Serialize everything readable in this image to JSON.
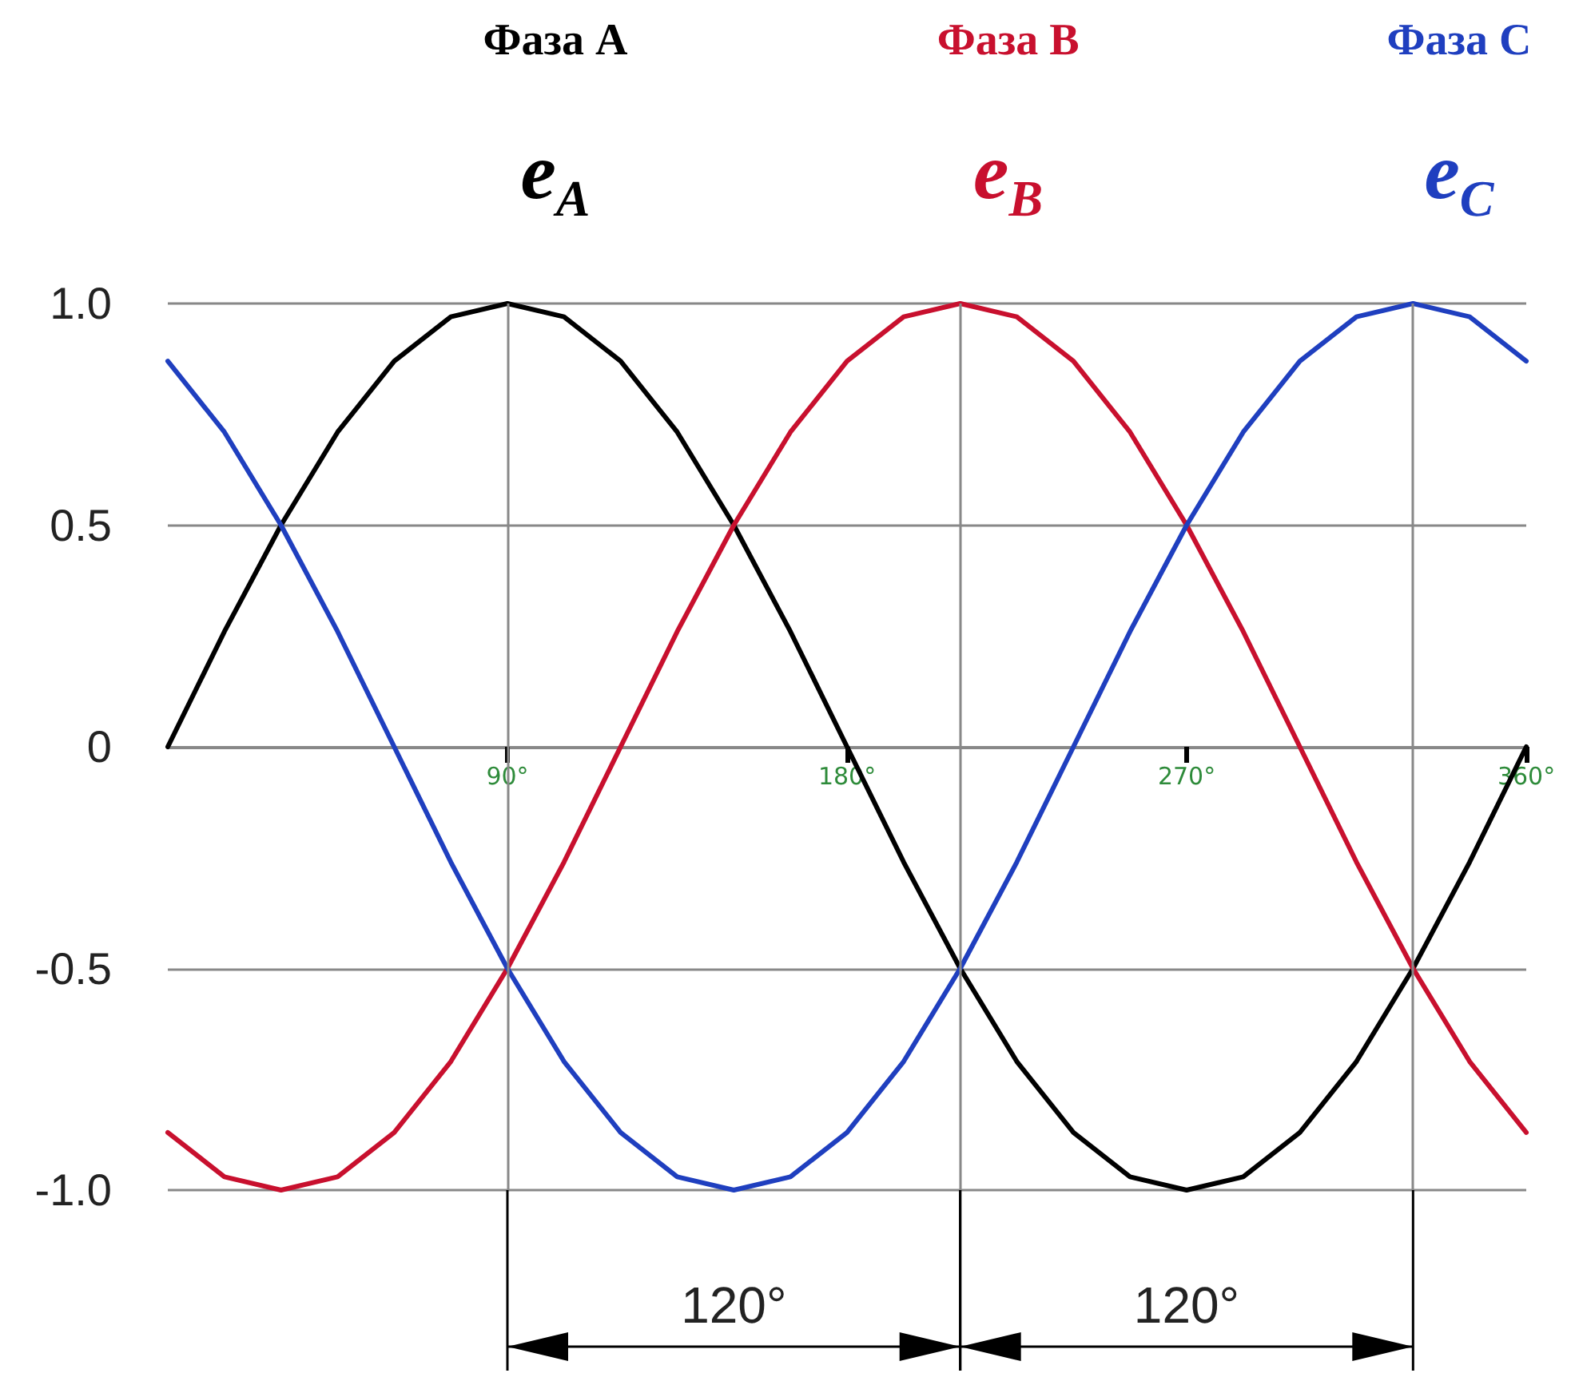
{
  "chart_data": {
    "type": "line",
    "x": [
      0,
      15,
      30,
      45,
      60,
      75,
      90,
      105,
      120,
      135,
      150,
      165,
      180,
      195,
      210,
      225,
      240,
      255,
      270,
      285,
      300,
      315,
      330,
      345,
      360
    ],
    "series": [
      {
        "name": "Фаза А",
        "color": "#000000",
        "values": [
          0,
          0.26,
          0.5,
          0.71,
          0.87,
          0.97,
          1,
          0.97,
          0.87,
          0.71,
          0.5,
          0.26,
          0,
          -0.26,
          -0.5,
          -0.71,
          -0.87,
          -0.97,
          -1,
          -0.97,
          -0.87,
          -0.71,
          -0.5,
          -0.26,
          0
        ]
      },
      {
        "name": "Фаза В",
        "color": "#c8102e",
        "values": [
          -0.87,
          -0.97,
          -1,
          -0.97,
          -0.87,
          -0.71,
          -0.5,
          -0.26,
          0,
          0.26,
          0.5,
          0.71,
          0.87,
          0.97,
          1,
          0.97,
          0.87,
          0.71,
          0.5,
          0.26,
          0,
          -0.26,
          -0.5,
          -0.71,
          -0.87
        ]
      },
      {
        "name": "Фаза С",
        "color": "#1f3fbf",
        "values": [
          0.87,
          0.71,
          0.5,
          0.26,
          0,
          -0.26,
          -0.5,
          -0.71,
          -0.87,
          -0.97,
          -1,
          -0.97,
          -0.87,
          -0.71,
          -0.5,
          -0.26,
          0,
          0.26,
          0.5,
          0.71,
          0.87,
          0.97,
          1,
          0.97,
          0.87
        ]
      }
    ],
    "xlim": [
      0,
      360
    ],
    "xticks": [
      {
        "value": 90,
        "label": "90°"
      },
      {
        "value": 180,
        "label": "180°"
      },
      {
        "value": 270,
        "label": "270°"
      },
      {
        "value": 360,
        "label": "360°"
      }
    ],
    "ylim": [
      -1,
      1
    ],
    "yticks": [
      {
        "value": -1,
        "label": "-1.0"
      },
      {
        "value": -0.5,
        "label": "-0.5"
      },
      0,
      {
        "value": 0.5,
        "label": "0.5"
      },
      {
        "value": 1,
        "label": "1.0"
      }
    ],
    "grid": "y",
    "marker": "none",
    "line_style": "solid",
    "ref_lines": [
      {
        "axis": "x",
        "value": 90
      },
      {
        "axis": "x",
        "value": 210
      },
      {
        "axis": "x",
        "value": 330
      }
    ],
    "annotations": [
      "e$_{A}$",
      "e$_{B}$",
      "e$_{C}$",
      "120°",
      "120°"
    ]
  }
}
